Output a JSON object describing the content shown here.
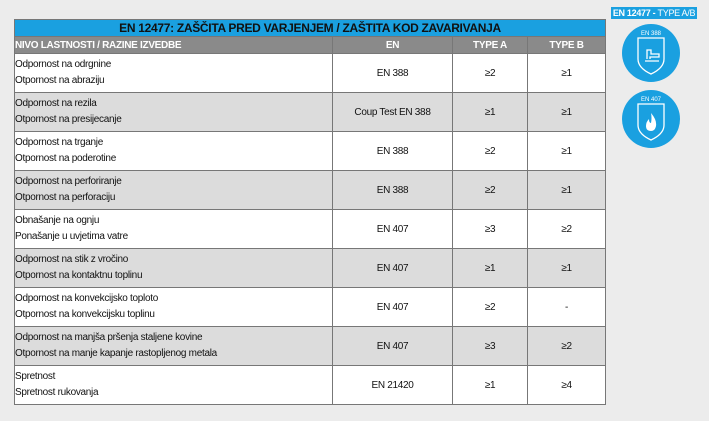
{
  "badge": {
    "standard": "EN 12477 -",
    "type": "TYPE A/B"
  },
  "icons": [
    {
      "name": "glove-mechanical-icon",
      "label": "EN 388"
    },
    {
      "name": "glove-flame-icon",
      "label": "EN 407"
    }
  ],
  "table": {
    "title": "EN 12477: ZAŠČITA PRED VARJENJEM / ZAŠTITA KOD ZAVARIVANJA",
    "headers": [
      "NIVO LASTNOSTI / RAZINE IZVEDBE",
      "EN",
      "TYPE A",
      "TYPE B"
    ],
    "rows": [
      {
        "sl": "Odpornost na odrgnine",
        "hr": "Otpornost na abraziju",
        "en": "EN 388",
        "a": "≥2",
        "b": "≥1"
      },
      {
        "sl": "Odpornost na rezila",
        "hr": "Otpornost na presijecanje",
        "en": "Coup Test EN 388",
        "a": "≥1",
        "b": "≥1"
      },
      {
        "sl": "Odpornost na trganje",
        "hr": "Otpornost na poderotine",
        "en": "EN 388",
        "a": "≥2",
        "b": "≥1"
      },
      {
        "sl": "Odpornost na perforiranje",
        "hr": "Otpornost na perforaciju",
        "en": "EN 388",
        "a": "≥2",
        "b": "≥1"
      },
      {
        "sl": "Obnašanje na ognju",
        "hr": "Ponašanje u uvjetima vatre",
        "en": "EN 407",
        "a": "≥3",
        "b": "≥2"
      },
      {
        "sl": "Odpornost na stik z vročino",
        "hr": "Otpornost na kontaktnu toplinu",
        "en": "EN 407",
        "a": "≥1",
        "b": "≥1"
      },
      {
        "sl": "Odpornost na konvekcijsko toploto",
        "hr": "Otpornost na konvekcijsku toplinu",
        "en": "EN 407",
        "a": "≥2",
        "b": "-"
      },
      {
        "sl": "Odpornost na manjša pršenja staljene kovine",
        "hr": "Otpornost na manje kapanje rastopljenog metala",
        "en": "EN 407",
        "a": "≥3",
        "b": "≥2"
      },
      {
        "sl": "Spretnost",
        "hr": "Spretnost rukovanja",
        "en": "EN 21420",
        "a": "≥1",
        "b": "≥4"
      }
    ]
  },
  "colors": {
    "accent": "#1aa0e0",
    "header": "#8a8a8a",
    "alt_row": "#dcdcdc"
  }
}
